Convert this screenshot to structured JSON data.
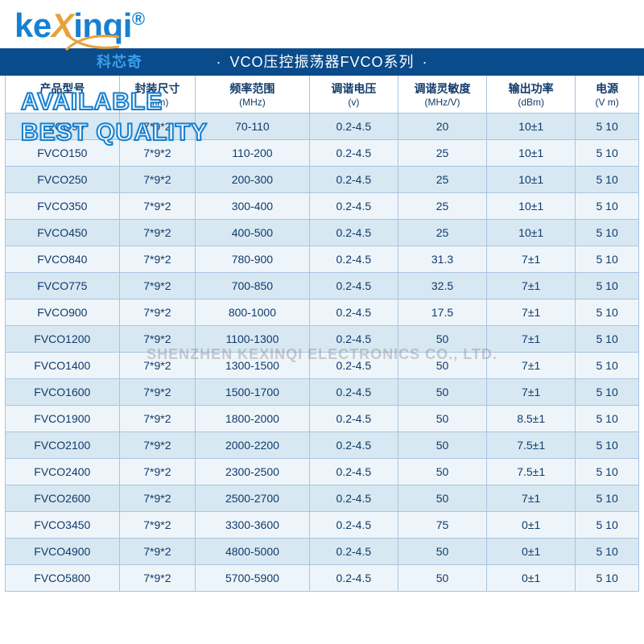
{
  "logo": {
    "text_k": "k",
    "text_e": "e",
    "text_x": "X",
    "text_rest": "inqi",
    "reg": "®"
  },
  "title": {
    "chinese_overlay": "科芯奇",
    "main": "VCO压控振荡器FVCO系列"
  },
  "overlay": {
    "line1": "AVAILABLE",
    "line2": "BEST QUALITY"
  },
  "watermark": "SHENZHEN KEXINQI ELECTRONICS CO., LTD.",
  "table": {
    "columns": [
      {
        "label": "产品型号",
        "unit": ""
      },
      {
        "label": "封装尺寸",
        "unit": "(mm)"
      },
      {
        "label": "频率范围",
        "unit": "(MHz)"
      },
      {
        "label": "调谐电压",
        "unit": "(v)"
      },
      {
        "label": "调谐灵敏度",
        "unit": "(MHz/V)"
      },
      {
        "label": "输出功率",
        "unit": "(dBm)"
      },
      {
        "label": "电源",
        "unit": "(V m)"
      }
    ],
    "col_widths_pct": [
      18,
      12,
      18,
      14,
      14,
      14,
      10
    ],
    "rows": [
      [
        "FVCO90",
        "7*9*2",
        "70-110",
        "0.2-4.5",
        "20",
        "10±1",
        "5 10"
      ],
      [
        "FVCO150",
        "7*9*2",
        "110-200",
        "0.2-4.5",
        "25",
        "10±1",
        "5 10"
      ],
      [
        "FVCO250",
        "7*9*2",
        "200-300",
        "0.2-4.5",
        "25",
        "10±1",
        "5 10"
      ],
      [
        "FVCO350",
        "7*9*2",
        "300-400",
        "0.2-4.5",
        "25",
        "10±1",
        "5 10"
      ],
      [
        "FVCO450",
        "7*9*2",
        "400-500",
        "0.2-4.5",
        "25",
        "10±1",
        "5 10"
      ],
      [
        "FVCO840",
        "7*9*2",
        "780-900",
        "0.2-4.5",
        "31.3",
        "7±1",
        "5 10"
      ],
      [
        "FVCO775",
        "7*9*2",
        "700-850",
        "0.2-4.5",
        "32.5",
        "7±1",
        "5 10"
      ],
      [
        "FVCO900",
        "7*9*2",
        "800-1000",
        "0.2-4.5",
        "17.5",
        "7±1",
        "5 10"
      ],
      [
        "FVCO1200",
        "7*9*2",
        "1100-1300",
        "0.2-4.5",
        "50",
        "7±1",
        "5 10"
      ],
      [
        "FVCO1400",
        "7*9*2",
        "1300-1500",
        "0.2-4.5",
        "50",
        "7±1",
        "5 10"
      ],
      [
        "FVCO1600",
        "7*9*2",
        "1500-1700",
        "0.2-4.5",
        "50",
        "7±1",
        "5 10"
      ],
      [
        "FVCO1900",
        "7*9*2",
        "1800-2000",
        "0.2-4.5",
        "50",
        "8.5±1",
        "5 10"
      ],
      [
        "FVCO2100",
        "7*9*2",
        "2000-2200",
        "0.2-4.5",
        "50",
        "7.5±1",
        "5 10"
      ],
      [
        "FVCO2400",
        "7*9*2",
        "2300-2500",
        "0.2-4.5",
        "50",
        "7.5±1",
        "5 10"
      ],
      [
        "FVCO2600",
        "7*9*2",
        "2500-2700",
        "0.2-4.5",
        "50",
        "7±1",
        "5 10"
      ],
      [
        "FVCO3450",
        "7*9*2",
        "3300-3600",
        "0.2-4.5",
        "75",
        "0±1",
        "5 10"
      ],
      [
        "FVCO4900",
        "7*9*2",
        "4800-5000",
        "0.2-4.5",
        "50",
        "0±1",
        "5 10"
      ],
      [
        "FVCO5800",
        "7*9*2",
        "5700-5900",
        "0.2-4.5",
        "50",
        "0±1",
        "5 10"
      ]
    ]
  },
  "colors": {
    "brand_blue": "#1780d0",
    "brand_orange": "#e8a23a",
    "title_bg": "#0a4b8c",
    "row_odd": "#d7e8f2",
    "row_even": "#eef5fa",
    "border": "#a9c3df",
    "text": "#123a6a"
  }
}
